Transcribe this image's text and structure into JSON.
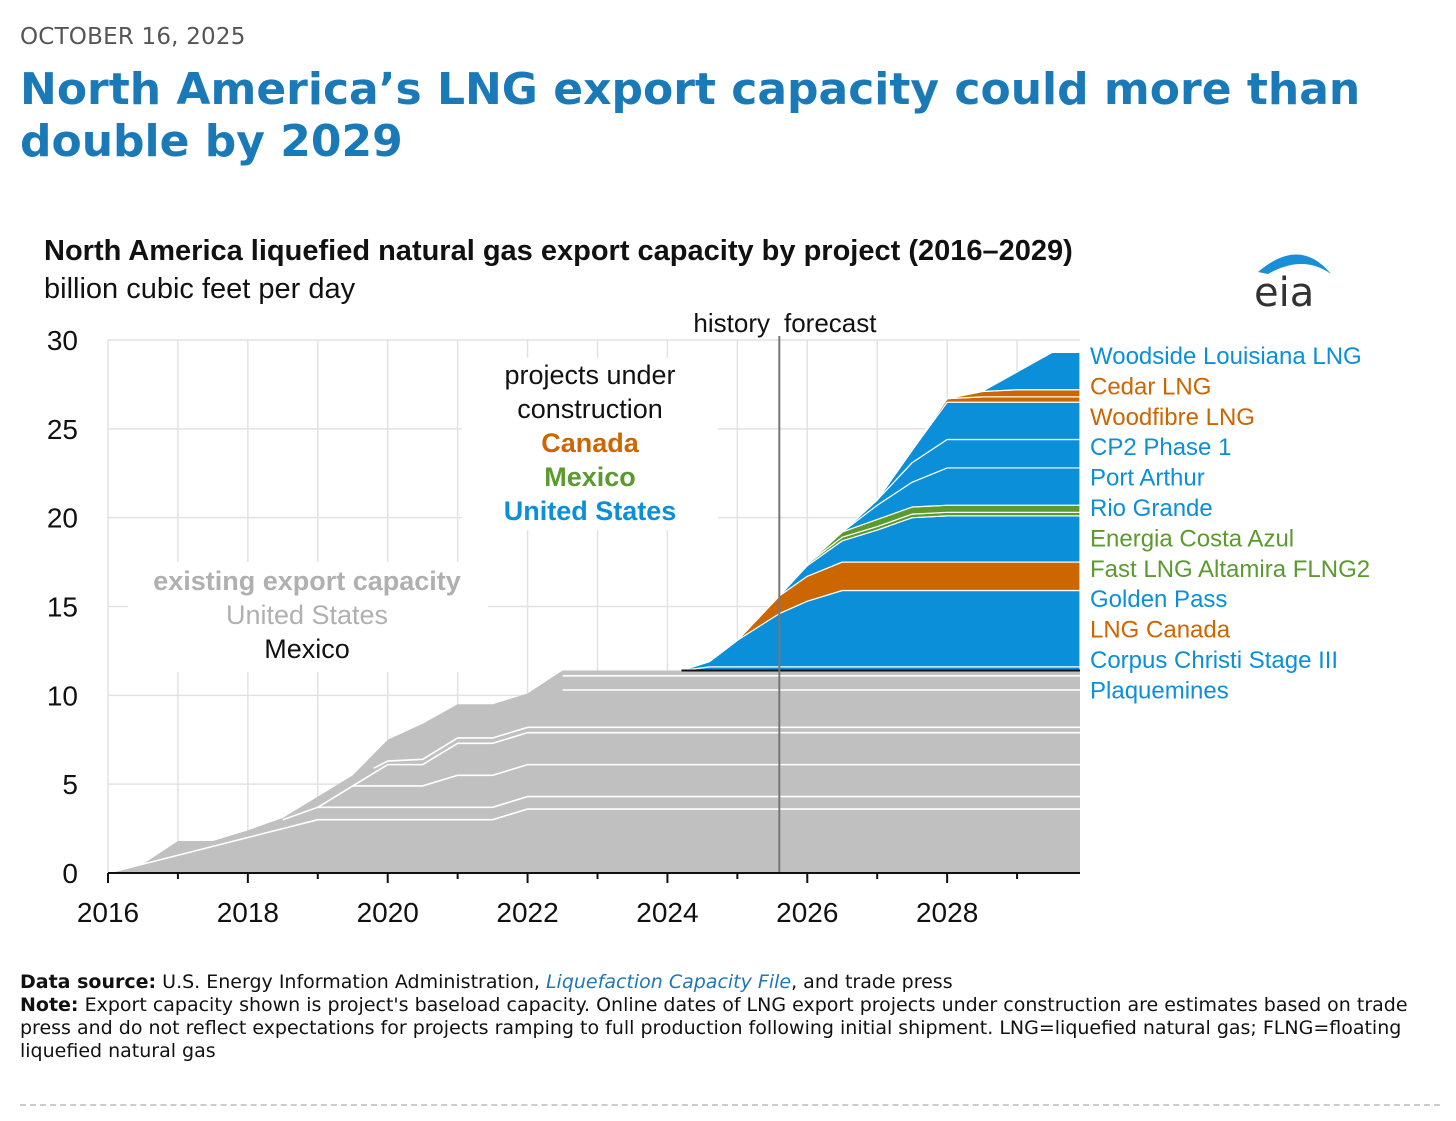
{
  "date": "OCTOBER 16, 2025",
  "headline": "North America’s LNG export capacity could more than double by 2029",
  "logo_text": "eia",
  "colors": {
    "existing": "#c0c0c0",
    "united_states": "#0b8fd8",
    "canada": "#cc6600",
    "mexico": "#5a9a2e",
    "headline": "#1a7ab8"
  },
  "annotations": {
    "history": "history",
    "forecast": "forecast",
    "under_construction_l1": "projects under",
    "under_construction_l2": "construction",
    "canada": "Canada",
    "mexico": "Mexico",
    "united_states": "United States",
    "existing_title": "existing export capacity",
    "existing_us": "United States",
    "existing_mexico": "Mexico"
  },
  "footer": {
    "source_label": "Data source:",
    "source_text_1": "U.S. Energy Information Administration,",
    "source_link": "Liquefaction Capacity File",
    "source_text_2": ", and trade press",
    "note_label": "Note:",
    "note_text": "Export capacity shown is project's baseload capacity. Online dates of LNG export projects under construction are estimates based on trade press and do not reflect expectations for projects ramping to full production following initial shipment. LNG=liquefied natural gas; FLNG=floating liquefied natural gas"
  },
  "chart_data": {
    "type": "area",
    "title": "North America liquefied natural gas export capacity by project (2016–2029)",
    "subtitle": "billion cubic feet per day",
    "xlim": [
      2016,
      2029.9
    ],
    "ylim": [
      0,
      30
    ],
    "x_ticks": [
      "2016",
      "2018",
      "2020",
      "2022",
      "2024",
      "2026",
      "2028"
    ],
    "x_tick_values": [
      2016,
      2018,
      2020,
      2022,
      2024,
      2026,
      2028
    ],
    "y_ticks": [
      "0",
      "5",
      "10",
      "15",
      "20",
      "25",
      "30"
    ],
    "y_tick_values": [
      0,
      5,
      10,
      15,
      20,
      25,
      30
    ],
    "grid": true,
    "forecast_start": 2025.6,
    "existing_total": {
      "x": [
        2016,
        2016.5,
        2017,
        2017.5,
        2018,
        2018.5,
        2019,
        2019.5,
        2020,
        2020.5,
        2021,
        2021.5,
        2022,
        2022.5,
        2029.9
      ],
      "y": [
        0,
        0.5,
        1.8,
        1.8,
        2.4,
        3.1,
        4.3,
        5.5,
        7.5,
        8.4,
        9.5,
        9.5,
        10.1,
        11.4,
        11.4
      ]
    },
    "existing_layers": [
      {
        "x": [
          2016,
          2019,
          2021.5,
          2022,
          2029.9
        ],
        "y": [
          0,
          3.0,
          3.0,
          3.6,
          3.6
        ]
      },
      {
        "x": [
          2018.5,
          2019,
          2021.5,
          2022,
          2029.9
        ],
        "y": [
          3.0,
          3.7,
          3.7,
          4.3,
          4.3
        ]
      },
      {
        "x": [
          2019,
          2019.5,
          2020.5,
          2021,
          2021.5,
          2022,
          2029.9
        ],
        "y": [
          3.7,
          4.9,
          4.9,
          5.5,
          5.5,
          6.1,
          6.1
        ]
      },
      {
        "x": [
          2019.5,
          2020,
          2020.5,
          2021,
          2021.5,
          2022,
          2029.9
        ],
        "y": [
          4.9,
          6.1,
          6.1,
          7.3,
          7.3,
          7.9,
          7.9
        ]
      },
      {
        "x": [
          2019.8,
          2020,
          2020.5,
          2021,
          2021.5,
          2022,
          2029.9
        ],
        "y": [
          5.9,
          6.3,
          6.4,
          7.6,
          7.6,
          8.2,
          8.2
        ]
      },
      {
        "x": [
          2022.5,
          2029.9
        ],
        "y": [
          10.3,
          10.3
        ]
      },
      {
        "x": [
          2022.5,
          2029.9
        ],
        "y": [
          11.1,
          11.1
        ]
      }
    ],
    "forecast_base": 11.4,
    "stack_x": [
      2024.2,
      2024.6,
      2025.0,
      2025.6,
      2026.0,
      2026.5,
      2027.0,
      2027.5,
      2028.0,
      2028.5,
      2029.0,
      2029.5,
      2029.9
    ],
    "series": [
      {
        "name": "Plaquemines",
        "country": "United States",
        "values": [
          0,
          0.2,
          0.2,
          0.2,
          0.2,
          0.2,
          0.2,
          0.2,
          0.2,
          0.2,
          0.2,
          0.2,
          0.2
        ]
      },
      {
        "name": "Corpus Christi Stage III",
        "country": "United States",
        "values": [
          0,
          0.3,
          1.5,
          3.0,
          3.7,
          4.3,
          4.3,
          4.3,
          4.3,
          4.3,
          4.3,
          4.3,
          4.3
        ]
      },
      {
        "name": "LNG Canada",
        "country": "Canada",
        "values": [
          0,
          0,
          0,
          1.0,
          1.4,
          1.6,
          1.6,
          1.6,
          1.6,
          1.6,
          1.6,
          1.6,
          1.6
        ]
      },
      {
        "name": "Golden Pass",
        "country": "United States",
        "values": [
          0,
          0,
          0,
          0,
          0.6,
          1.2,
          1.8,
          2.5,
          2.6,
          2.6,
          2.6,
          2.6,
          2.6
        ]
      },
      {
        "name": "Fast LNG Altamira FLNG2",
        "country": "Mexico",
        "values": [
          0,
          0,
          0,
          0,
          0.1,
          0.2,
          0.2,
          0.2,
          0.2,
          0.2,
          0.2,
          0.2,
          0.2
        ]
      },
      {
        "name": "Energia Costa Azul",
        "country": "Mexico",
        "values": [
          0,
          0,
          0,
          0,
          0,
          0.3,
          0.4,
          0.4,
          0.4,
          0.4,
          0.4,
          0.4,
          0.4
        ]
      },
      {
        "name": "Rio Grande",
        "country": "United States",
        "values": [
          0,
          0,
          0,
          0,
          0,
          0,
          0.8,
          1.4,
          2.1,
          2.1,
          2.1,
          2.1,
          2.1
        ]
      },
      {
        "name": "Port Arthur",
        "country": "United States",
        "values": [
          0,
          0,
          0,
          0,
          0,
          0,
          0.3,
          1.1,
          1.6,
          1.6,
          1.6,
          1.6,
          1.6
        ]
      },
      {
        "name": "CP2 Phase 1",
        "country": "United States",
        "values": [
          0,
          0,
          0,
          0,
          0,
          0,
          0,
          0.7,
          2.1,
          2.1,
          2.1,
          2.1,
          2.1
        ]
      },
      {
        "name": "Woodfibre LNG",
        "country": "Canada",
        "values": [
          0,
          0,
          0,
          0,
          0,
          0,
          0,
          0,
          0.2,
          0.3,
          0.3,
          0.3,
          0.3
        ]
      },
      {
        "name": "Cedar LNG",
        "country": "Canada",
        "values": [
          0,
          0,
          0,
          0,
          0,
          0,
          0,
          0,
          0,
          0.3,
          0.4,
          0.4,
          0.4
        ]
      },
      {
        "name": "Woodside Louisiana LNG",
        "country": "United States",
        "values": [
          0,
          0,
          0,
          0,
          0,
          0,
          0,
          0,
          0,
          0,
          1.0,
          2.1,
          2.1
        ]
      }
    ],
    "legend_order": [
      "Woodside Louisiana LNG",
      "Cedar LNG",
      "Woodfibre LNG",
      "CP2 Phase 1",
      "Port Arthur",
      "Rio Grande",
      "Energia Costa Azul",
      "Fast LNG Altamira FLNG2",
      "Golden Pass",
      "LNG Canada",
      "Corpus Christi Stage III",
      "Plaquemines"
    ],
    "legend_placement": "right"
  }
}
